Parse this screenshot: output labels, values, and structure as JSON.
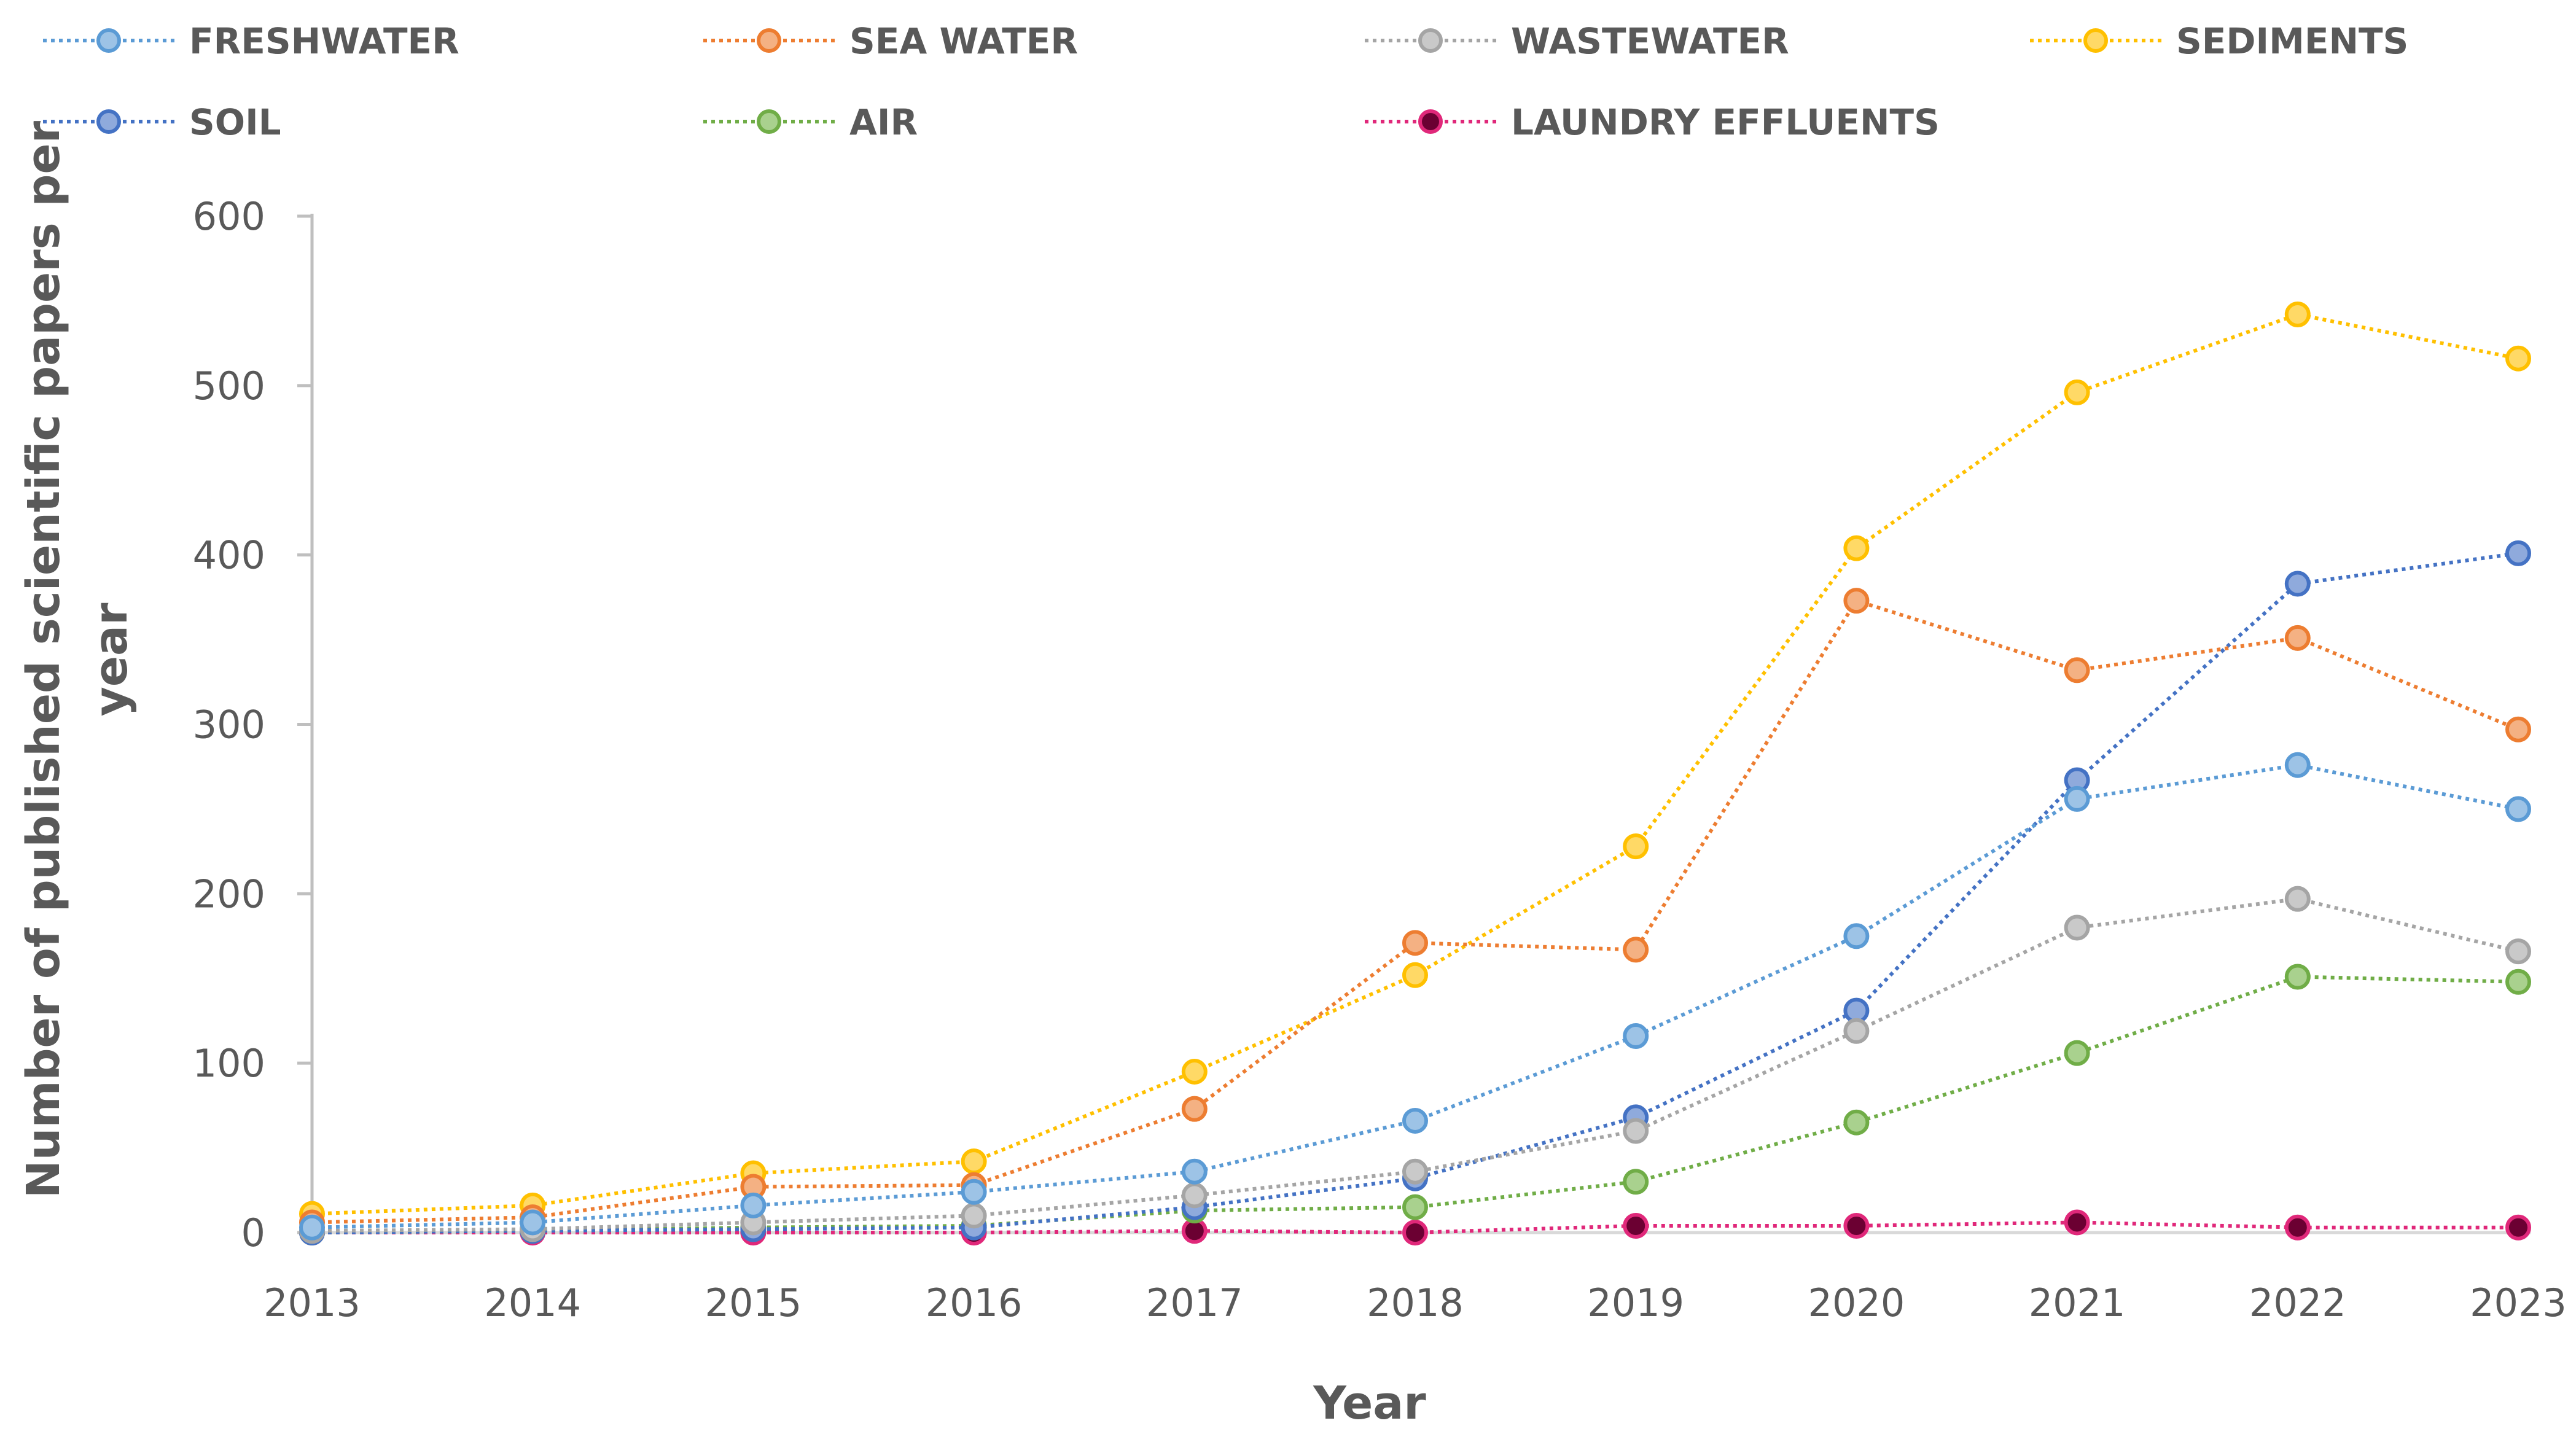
{
  "chart_data": {
    "type": "line",
    "title": "",
    "xlabel": "Year",
    "ylabel": "Number of published scientific papers per year",
    "x": [
      "2013",
      "2014",
      "2015",
      "2016",
      "2017",
      "2018",
      "2019",
      "2020",
      "2021",
      "2022",
      "2023"
    ],
    "ylim": [
      0,
      600
    ],
    "yticks": [
      0,
      100,
      200,
      300,
      400,
      500,
      600
    ],
    "yticks_labels": [
      "0",
      "100",
      "200",
      "300",
      "400",
      "500",
      "600"
    ],
    "grid": false,
    "legend_position": "top",
    "series": [
      {
        "name": "FRESHWATER",
        "color": "#5b9bd5",
        "fill": "#9dc3e6",
        "values": [
          3,
          6,
          16,
          24,
          36,
          66,
          116,
          175,
          256,
          276,
          250
        ]
      },
      {
        "name": "SEA WATER",
        "color": "#ed7d31",
        "fill": "#f4b183",
        "values": [
          6,
          9,
          27,
          28,
          73,
          171,
          167,
          373,
          332,
          351,
          297
        ]
      },
      {
        "name": "WASTEWATER",
        "color": "#a5a5a5",
        "fill": "#c9c9c9",
        "values": [
          1,
          2,
          6,
          10,
          22,
          36,
          60,
          119,
          180,
          197,
          166
        ]
      },
      {
        "name": "SEDIMENTS",
        "color": "#ffc000",
        "fill": "#ffd966",
        "values": [
          11,
          16,
          35,
          42,
          95,
          152,
          228,
          404,
          496,
          542,
          516
        ]
      },
      {
        "name": "SOIL",
        "color": "#4472c4",
        "fill": "#8faadc",
        "values": [
          0,
          1,
          2,
          3,
          15,
          32,
          68,
          131,
          267,
          383,
          401
        ]
      },
      {
        "name": "AIR",
        "color": "#70ad47",
        "fill": "#a9d18e",
        "values": [
          0,
          1,
          3,
          4,
          13,
          15,
          30,
          65,
          106,
          151,
          148
        ]
      },
      {
        "name": "LAUNDRY EFFLUENTS",
        "color": "#e0287a",
        "fill": "#6b0032",
        "values": [
          0,
          0,
          0,
          0,
          1,
          0,
          4,
          4,
          6,
          3,
          3
        ]
      }
    ]
  }
}
